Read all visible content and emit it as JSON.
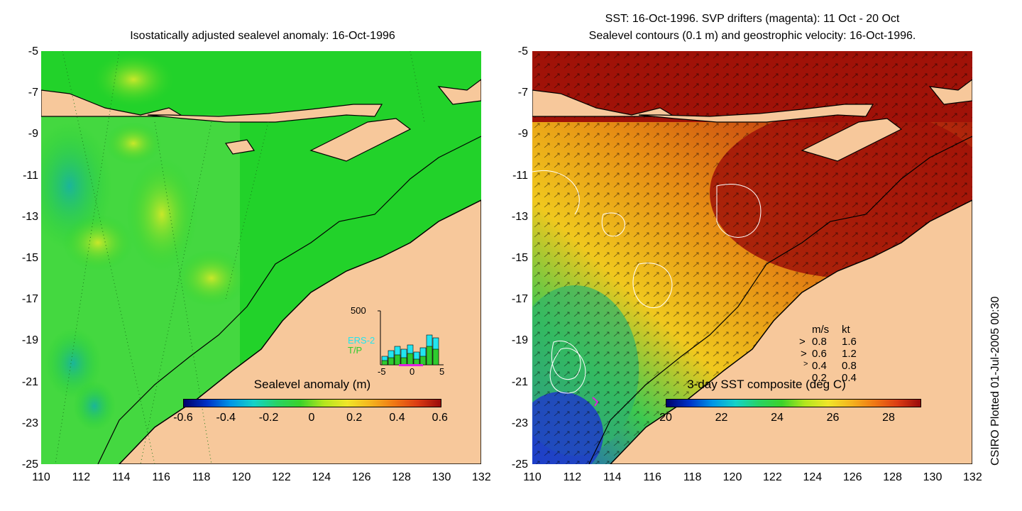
{
  "left_panel": {
    "title": "Isostatically adjusted sealevel anomaly: 16-Oct-1996",
    "y_ticks": [
      "-5",
      "-7",
      "-9",
      "-11",
      "-13",
      "-15",
      "-17",
      "-19",
      "-21",
      "-23",
      "-25"
    ],
    "x_ticks": [
      "110",
      "112",
      "114",
      "116",
      "118",
      "120",
      "122",
      "124",
      "126",
      "128",
      "130",
      "132"
    ],
    "colorbar_label": "Sealevel anomaly (m)",
    "colorbar_ticks": [
      "-0.6",
      "-0.4",
      "-0.2",
      "0",
      "0.2",
      "0.4",
      "0.6"
    ],
    "inset": {
      "ymax_label": "500",
      "series_labels": [
        "ERS-2",
        "T/P"
      ],
      "x_ticks": [
        "-5",
        "0",
        "5"
      ],
      "colors": {
        "ERS-2": "#22e5f0",
        "T/P": "#2ecc2e"
      }
    }
  },
  "right_panel": {
    "title_line1": "SST: 16-Oct-1996. SVP drifters (magenta): 11 Oct - 20 Oct",
    "title_line2": "Sealevel contours (0.1 m) and geostrophic velocity: 16-Oct-1996.",
    "y_ticks": [
      "-5",
      "-7",
      "-9",
      "-11",
      "-13",
      "-15",
      "-17",
      "-19",
      "-21",
      "-23",
      "-25"
    ],
    "x_ticks": [
      "110",
      "112",
      "114",
      "116",
      "118",
      "120",
      "122",
      "124",
      "126",
      "128",
      "130",
      "132"
    ],
    "colorbar_label": "3-day SST composite (deg C)",
    "colorbar_ticks": [
      "20",
      "22",
      "24",
      "26",
      "28"
    ],
    "velocity_legend": {
      "header_ms": "m/s",
      "header_kt": "kt",
      "rows": [
        {
          "ms": "0.8",
          "kt": "1.6"
        },
        {
          "ms": "0.6",
          "kt": "1.2"
        },
        {
          "ms": "0.4",
          "kt": "0.8"
        },
        {
          "ms": "0.2",
          "kt": "0.4"
        }
      ]
    }
  },
  "credit": "CSIRO Plotted 01-Jul-2005 00:30",
  "colors": {
    "land": "#f7c89b",
    "sla_background": "#22d22a",
    "sst_warm": "#b01a10",
    "sst_mid": "#e08a10"
  }
}
